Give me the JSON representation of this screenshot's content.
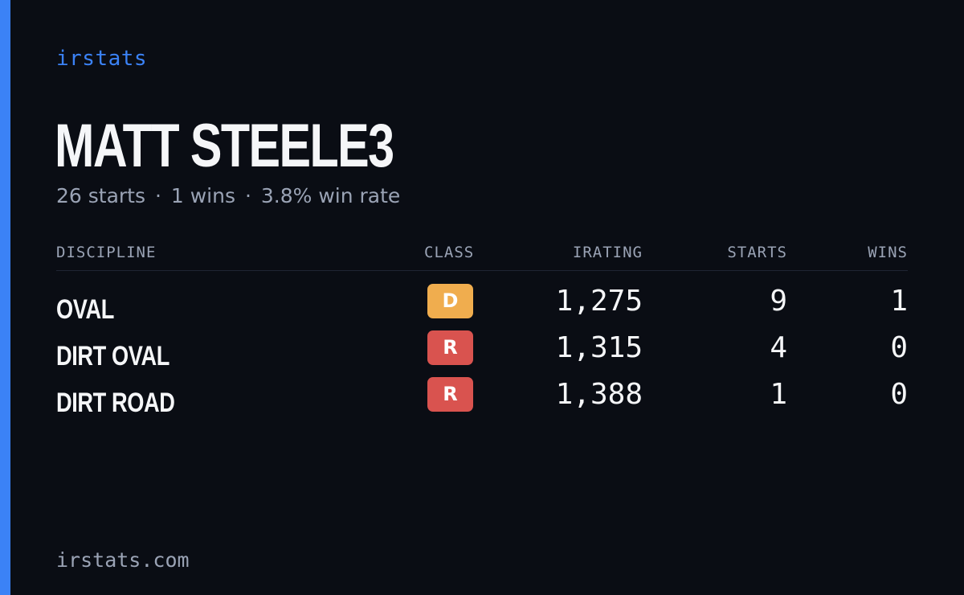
{
  "brand": "irstats",
  "driver": {
    "name": "MATT STEELE3"
  },
  "summary": {
    "starts": "26 starts",
    "wins": "1 wins",
    "win_rate": "3.8% win rate",
    "separator": "·"
  },
  "table": {
    "headers": {
      "discipline": "DISCIPLINE",
      "class": "CLASS",
      "irating": "IRATING",
      "starts": "STARTS",
      "wins": "WINS"
    },
    "rows": [
      {
        "discipline": "OVAL",
        "class": "D",
        "class_color": "#f0ad4e",
        "irating": "1,275",
        "starts": "9",
        "wins": "1"
      },
      {
        "discipline": "DIRT OVAL",
        "class": "R",
        "class_color": "#d9534f",
        "irating": "1,315",
        "starts": "4",
        "wins": "0"
      },
      {
        "discipline": "DIRT ROAD",
        "class": "R",
        "class_color": "#d9534f",
        "irating": "1,388",
        "starts": "1",
        "wins": "0"
      }
    ]
  },
  "footer": "irstats.com",
  "colors": {
    "background": "#0a0d14",
    "accent": "#3b82f6",
    "text_primary": "#f5f6f8",
    "text_muted": "#9aa3b5"
  }
}
